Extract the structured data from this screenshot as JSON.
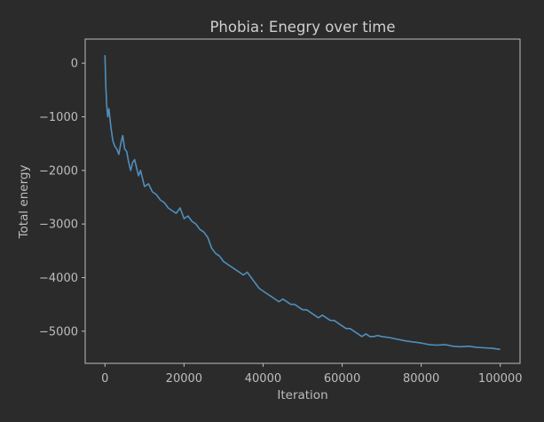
{
  "chart_data": {
    "type": "line",
    "title": "Phobia: Enegry over time",
    "xlabel": "Iteration",
    "ylabel": "Total energy",
    "xlim": [
      -5000,
      105000
    ],
    "ylim": [
      -5600,
      450
    ],
    "x_ticks": [
      0,
      20000,
      40000,
      60000,
      80000,
      100000
    ],
    "x_tick_labels": [
      "0",
      "20000",
      "40000",
      "60000",
      "80000",
      "100000"
    ],
    "y_ticks": [
      0,
      -1000,
      -2000,
      -3000,
      -4000,
      -5000
    ],
    "y_tick_labels": [
      "0",
      "−1000",
      "−2000",
      "−3000",
      "−4000",
      "−5000"
    ],
    "grid": false,
    "legend": "none",
    "colors": {
      "background": "#2b2b2b",
      "axes": "#bdbdbd",
      "text": "#bdbdbd",
      "line": "#4f8fbd"
    },
    "series": [
      {
        "x": [
          0,
          200,
          400,
          700,
          1000,
          1500,
          2000,
          2500,
          3000,
          3500,
          4000,
          4500,
          5000,
          5500,
          6000,
          6500,
          7000,
          7500,
          8000,
          8500,
          9000,
          9500,
          10000,
          11000,
          12000,
          13000,
          14000,
          15000,
          16000,
          17000,
          18000,
          19000,
          20000,
          21000,
          22000,
          23000,
          24000,
          25000,
          26000,
          27000,
          28000,
          29000,
          30000,
          31000,
          32000,
          33000,
          34000,
          35000,
          36000,
          37000,
          38000,
          39000,
          40000,
          41000,
          42000,
          43000,
          44000,
          45000,
          46000,
          47000,
          48000,
          49000,
          50000,
          51000,
          52000,
          53000,
          54000,
          55000,
          56000,
          57000,
          58000,
          59000,
          60000,
          61000,
          62000,
          63000,
          64000,
          65000,
          66000,
          67000,
          68000,
          69000,
          70000,
          72000,
          74000,
          76000,
          78000,
          80000,
          82000,
          84000,
          86000,
          88000,
          90000,
          92000,
          94000,
          96000,
          98000,
          100000
        ],
        "values": [
          150,
          -400,
          -750,
          -1000,
          -850,
          -1200,
          -1450,
          -1550,
          -1600,
          -1700,
          -1500,
          -1350,
          -1600,
          -1650,
          -1850,
          -2000,
          -1850,
          -1800,
          -1950,
          -2100,
          -2000,
          -2150,
          -2300,
          -2250,
          -2400,
          -2450,
          -2550,
          -2600,
          -2700,
          -2750,
          -2800,
          -2700,
          -2900,
          -2850,
          -2950,
          -3000,
          -3100,
          -3150,
          -3250,
          -3450,
          -3550,
          -3600,
          -3700,
          -3750,
          -3800,
          -3850,
          -3900,
          -3950,
          -3900,
          -4000,
          -4100,
          -4200,
          -4250,
          -4300,
          -4350,
          -4400,
          -4450,
          -4400,
          -4450,
          -4500,
          -4500,
          -4550,
          -4600,
          -4600,
          -4650,
          -4700,
          -4750,
          -4700,
          -4750,
          -4800,
          -4800,
          -4850,
          -4900,
          -4950,
          -4950,
          -5000,
          -5050,
          -5100,
          -5050,
          -5100,
          -5100,
          -5080,
          -5100,
          -5120,
          -5150,
          -5180,
          -5200,
          -5220,
          -5250,
          -5260,
          -5250,
          -5280,
          -5290,
          -5280,
          -5300,
          -5310,
          -5320,
          -5340
        ]
      }
    ]
  }
}
